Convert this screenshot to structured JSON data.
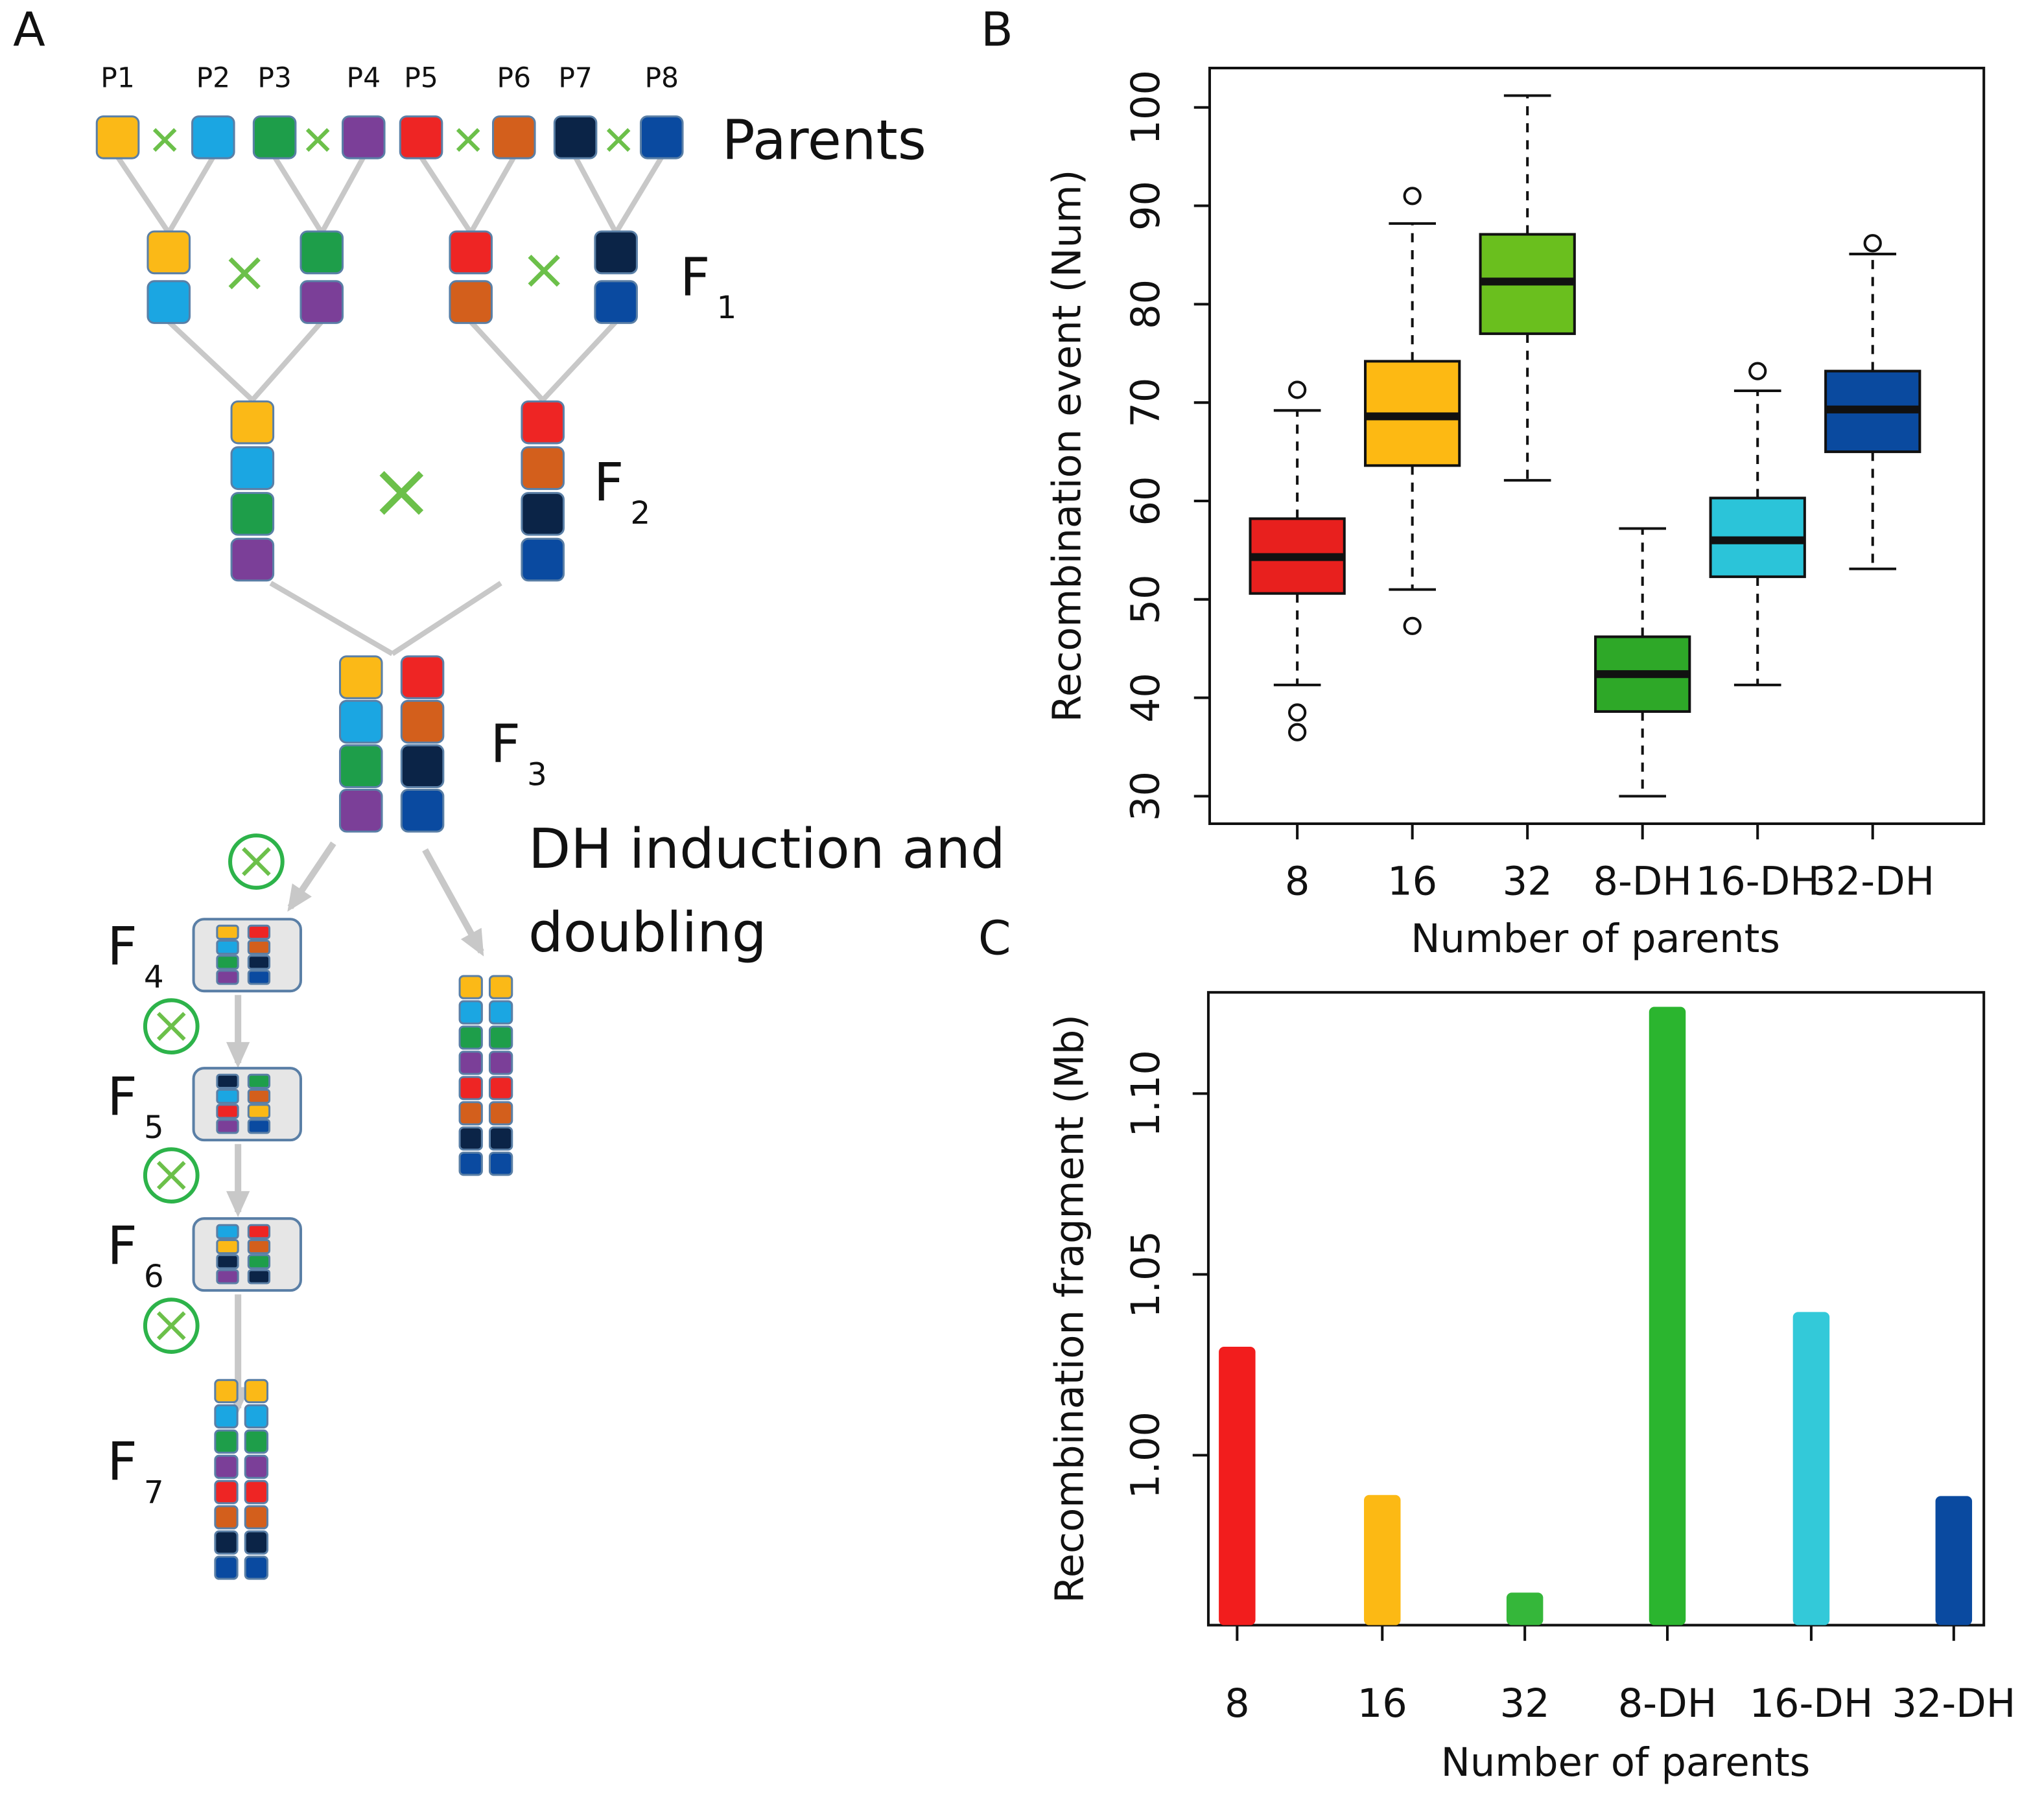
{
  "panels": [
    "A",
    "B",
    "C"
  ],
  "diagram": {
    "parents_label": "Parents",
    "parents": [
      {
        "label": "P1",
        "color": "#fbb917"
      },
      {
        "label": "P2",
        "color": "#1ba6e2"
      },
      {
        "label": "P3",
        "color": "#1e9e4a"
      },
      {
        "label": "P4",
        "color": "#7b3f98"
      },
      {
        "label": "P5",
        "color": "#ee2524"
      },
      {
        "label": "P6",
        "color": "#d35f1c"
      },
      {
        "label": "P7",
        "color": "#0b2447"
      },
      {
        "label": "P8",
        "color": "#0a4aa0"
      }
    ],
    "generations": [
      {
        "letter": "F",
        "sub": "1"
      },
      {
        "letter": "F",
        "sub": "2"
      },
      {
        "letter": "F",
        "sub": "3"
      },
      {
        "letter": "F",
        "sub": "4"
      },
      {
        "letter": "F",
        "sub": "5"
      },
      {
        "letter": "F",
        "sub": "6"
      },
      {
        "letter": "F",
        "sub": "7"
      }
    ],
    "dh_label": [
      "DH induction and",
      "doubling"
    ]
  },
  "chart_data": [
    {
      "type": "boxplot",
      "xlabel": "Number of parents",
      "ylabel": "Recombination event (Num)",
      "categories": [
        "8",
        "16",
        "32",
        "8-DH",
        "16-DH",
        "32-DH"
      ],
      "colors": [
        "#e8201e",
        "#fdb913",
        "#6abf1e",
        "#2ea828",
        "#2bc4d9",
        "#0a4a9f"
      ],
      "boxes": [
        {
          "whisker_low": 41.3,
          "q1": 50.6,
          "median": 54.3,
          "q3": 58.2,
          "whisker_high": 69.2,
          "outliers": [
            71.3,
            38.5,
            36.5
          ]
        },
        {
          "whisker_low": 51,
          "q1": 63.6,
          "median": 68.6,
          "q3": 74.2,
          "whisker_high": 88.2,
          "outliers": [
            91,
            47.3
          ]
        },
        {
          "whisker_low": 62.1,
          "q1": 77,
          "median": 82.3,
          "q3": 87.1,
          "whisker_high": 101.2,
          "outliers": []
        },
        {
          "whisker_low": 30,
          "q1": 38.6,
          "median": 42.4,
          "q3": 46.2,
          "whisker_high": 57.2,
          "outliers": []
        },
        {
          "whisker_low": 41.3,
          "q1": 52.3,
          "median": 56,
          "q3": 60.3,
          "whisker_high": 71.2,
          "outliers": [
            73.2
          ]
        },
        {
          "whisker_low": 53.1,
          "q1": 65,
          "median": 69.3,
          "q3": 73.2,
          "whisker_high": 85.1,
          "outliers": [
            86.2
          ]
        }
      ],
      "ylim": [
        27.2,
        104
      ],
      "yticks": [
        30,
        40,
        50,
        60,
        70,
        80,
        90,
        100
      ]
    },
    {
      "type": "bar",
      "xlabel": "Number of parents",
      "ylabel": "Recombination fragment (Mb)",
      "categories": [
        "8",
        "16",
        "32",
        "8-DH",
        "16-DH",
        "32-DH"
      ],
      "colors": [
        "#f21d1d",
        "#fcb914",
        "#35b73a",
        "#2bb52f",
        "#33c9d9",
        "#0a4aa0"
      ],
      "values": [
        1.03,
        0.989,
        0.962,
        1.124,
        1.0396,
        0.9887
      ],
      "ylim": [
        0.953,
        1.128
      ],
      "yticks": [
        {
          "value": 1.0,
          "label": "1.00"
        },
        {
          "value": 1.05,
          "label": "1.05"
        },
        {
          "value": 1.1,
          "label": "1.10"
        }
      ]
    }
  ]
}
